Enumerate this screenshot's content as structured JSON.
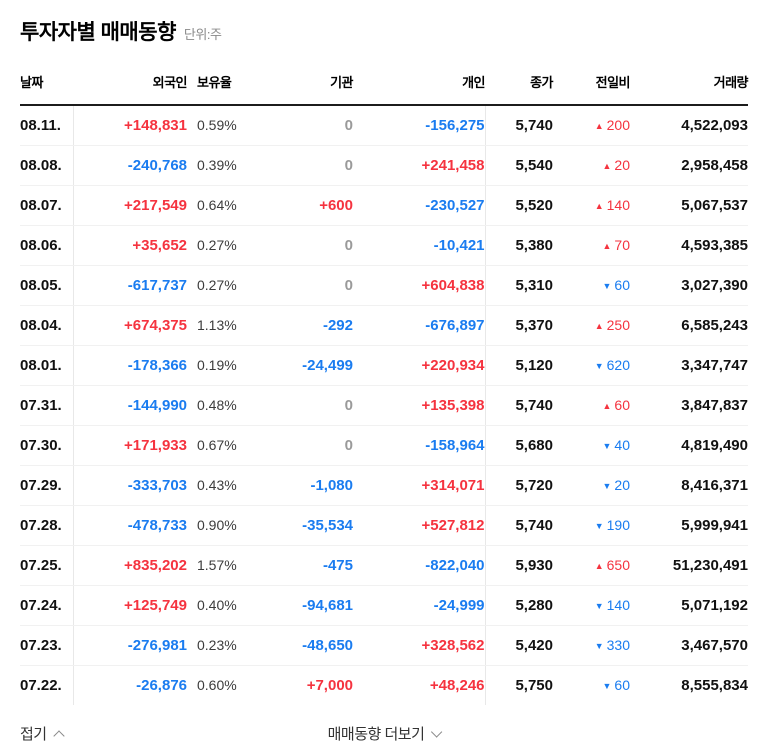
{
  "header": {
    "title": "투자자별 매매동향",
    "unit": "단위:주"
  },
  "colors": {
    "up": "#f5333f",
    "down": "#1a7cf0",
    "zero": "#9a9a9a"
  },
  "icons": {
    "up_triangle": "▲",
    "down_triangle": "▼",
    "chevron_up": "chevron-up",
    "chevron_down": "chevron-down"
  },
  "table": {
    "columns": [
      "날짜",
      "외국인",
      "보유율",
      "기관",
      "개인",
      "종가",
      "전일비",
      "거래량"
    ],
    "rows": [
      {
        "date": "08.11.",
        "foreigner": "+148,831",
        "foreigner_tone": "up",
        "ratio": "0.59%",
        "institution": "0",
        "institution_tone": "zero",
        "individual": "-156,275",
        "individual_tone": "down",
        "close": "5,740",
        "change_dir": "up",
        "change": "200",
        "volume": "4,522,093"
      },
      {
        "date": "08.08.",
        "foreigner": "-240,768",
        "foreigner_tone": "down",
        "ratio": "0.39%",
        "institution": "0",
        "institution_tone": "zero",
        "individual": "+241,458",
        "individual_tone": "up",
        "close": "5,540",
        "change_dir": "up",
        "change": "20",
        "volume": "2,958,458"
      },
      {
        "date": "08.07.",
        "foreigner": "+217,549",
        "foreigner_tone": "up",
        "ratio": "0.64%",
        "institution": "+600",
        "institution_tone": "up",
        "individual": "-230,527",
        "individual_tone": "down",
        "close": "5,520",
        "change_dir": "up",
        "change": "140",
        "volume": "5,067,537"
      },
      {
        "date": "08.06.",
        "foreigner": "+35,652",
        "foreigner_tone": "up",
        "ratio": "0.27%",
        "institution": "0",
        "institution_tone": "zero",
        "individual": "-10,421",
        "individual_tone": "down",
        "close": "5,380",
        "change_dir": "up",
        "change": "70",
        "volume": "4,593,385"
      },
      {
        "date": "08.05.",
        "foreigner": "-617,737",
        "foreigner_tone": "down",
        "ratio": "0.27%",
        "institution": "0",
        "institution_tone": "zero",
        "individual": "+604,838",
        "individual_tone": "up",
        "close": "5,310",
        "change_dir": "down",
        "change": "60",
        "volume": "3,027,390"
      },
      {
        "date": "08.04.",
        "foreigner": "+674,375",
        "foreigner_tone": "up",
        "ratio": "1.13%",
        "institution": "-292",
        "institution_tone": "down",
        "individual": "-676,897",
        "individual_tone": "down",
        "close": "5,370",
        "change_dir": "up",
        "change": "250",
        "volume": "6,585,243"
      },
      {
        "date": "08.01.",
        "foreigner": "-178,366",
        "foreigner_tone": "down",
        "ratio": "0.19%",
        "institution": "-24,499",
        "institution_tone": "down",
        "individual": "+220,934",
        "individual_tone": "up",
        "close": "5,120",
        "change_dir": "down",
        "change": "620",
        "volume": "3,347,747"
      },
      {
        "date": "07.31.",
        "foreigner": "-144,990",
        "foreigner_tone": "down",
        "ratio": "0.48%",
        "institution": "0",
        "institution_tone": "zero",
        "individual": "+135,398",
        "individual_tone": "up",
        "close": "5,740",
        "change_dir": "up",
        "change": "60",
        "volume": "3,847,837"
      },
      {
        "date": "07.30.",
        "foreigner": "+171,933",
        "foreigner_tone": "up",
        "ratio": "0.67%",
        "institution": "0",
        "institution_tone": "zero",
        "individual": "-158,964",
        "individual_tone": "down",
        "close": "5,680",
        "change_dir": "down",
        "change": "40",
        "volume": "4,819,490"
      },
      {
        "date": "07.29.",
        "foreigner": "-333,703",
        "foreigner_tone": "down",
        "ratio": "0.43%",
        "institution": "-1,080",
        "institution_tone": "down",
        "individual": "+314,071",
        "individual_tone": "up",
        "close": "5,720",
        "change_dir": "down",
        "change": "20",
        "volume": "8,416,371"
      },
      {
        "date": "07.28.",
        "foreigner": "-478,733",
        "foreigner_tone": "down",
        "ratio": "0.90%",
        "institution": "-35,534",
        "institution_tone": "down",
        "individual": "+527,812",
        "individual_tone": "up",
        "close": "5,740",
        "change_dir": "down",
        "change": "190",
        "volume": "5,999,941"
      },
      {
        "date": "07.25.",
        "foreigner": "+835,202",
        "foreigner_tone": "up",
        "ratio": "1.57%",
        "institution": "-475",
        "institution_tone": "down",
        "individual": "-822,040",
        "individual_tone": "down",
        "close": "5,930",
        "change_dir": "up",
        "change": "650",
        "volume": "51,230,491"
      },
      {
        "date": "07.24.",
        "foreigner": "+125,749",
        "foreigner_tone": "up",
        "ratio": "0.40%",
        "institution": "-94,681",
        "institution_tone": "down",
        "individual": "-24,999",
        "individual_tone": "down",
        "close": "5,280",
        "change_dir": "down",
        "change": "140",
        "volume": "5,071,192"
      },
      {
        "date": "07.23.",
        "foreigner": "-276,981",
        "foreigner_tone": "down",
        "ratio": "0.23%",
        "institution": "-48,650",
        "institution_tone": "down",
        "individual": "+328,562",
        "individual_tone": "up",
        "close": "5,420",
        "change_dir": "down",
        "change": "330",
        "volume": "3,467,570"
      },
      {
        "date": "07.22.",
        "foreigner": "-26,876",
        "foreigner_tone": "down",
        "ratio": "0.60%",
        "institution": "+7,000",
        "institution_tone": "up",
        "individual": "+48,246",
        "individual_tone": "up",
        "close": "5,750",
        "change_dir": "down",
        "change": "60",
        "volume": "8,555,834"
      }
    ]
  },
  "footer": {
    "collapse_label": "접기",
    "more_label": "매매동향 더보기"
  }
}
